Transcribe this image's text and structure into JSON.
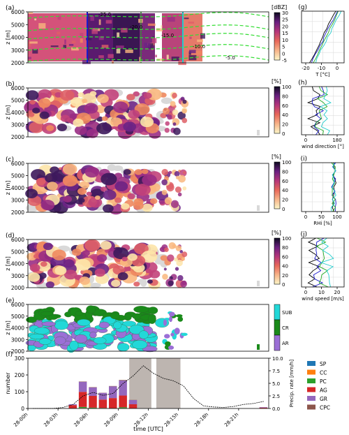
{
  "radar_panel": {
    "label": "(a)",
    "ylabel": "z [m]",
    "yticks": [
      "2000",
      "3000",
      "4000",
      "5000",
      "6000"
    ],
    "colorbar_unit": "[dBZ]",
    "colorbar_ticks": [
      "30",
      "25",
      "20",
      "15",
      "10",
      "5",
      "0",
      "-5"
    ],
    "temperature_contours": [
      "-25.0",
      "-20.0",
      "-15.0",
      "-10.0",
      "-5.0"
    ]
  },
  "fraction_panels": [
    {
      "label": "(b)",
      "ylabel": "z [m]",
      "colorbar_unit": "[%]"
    },
    {
      "label": "(c)",
      "ylabel": "z [m]",
      "colorbar_unit": "[%]"
    },
    {
      "label": "(d)",
      "ylabel": "z [m]",
      "colorbar_unit": "[%]"
    }
  ],
  "fraction_yticks": [
    "2000",
    "3000",
    "4000",
    "5000",
    "6000"
  ],
  "fraction_colorbar_ticks": [
    "100",
    "80",
    "60",
    "40",
    "20",
    "0"
  ],
  "class_panel": {
    "label": "(e)",
    "ylabel": "z [m]",
    "yticks": [
      "2000",
      "3000",
      "4000",
      "5000",
      "6000"
    ],
    "classes": [
      {
        "name": "SUB",
        "color": "#22d8d8"
      },
      {
        "name": "CR",
        "color": "#1a8a1a"
      },
      {
        "name": "AR",
        "color": "#9b6fd6"
      }
    ]
  },
  "histogram_panel": {
    "label": "(f)",
    "ylabel": "number",
    "ylabel_right": "Precip. rate [mm/h]",
    "xlabel": "time [UTC]",
    "yticks": [
      "0",
      "100",
      "200",
      "300"
    ],
    "yticks_right": [
      "0.0",
      "2.5",
      "5.0",
      "7.5",
      "10.0"
    ],
    "xticks": [
      "28-00h",
      "28-03h",
      "28-06h",
      "28-09h",
      "28-12h",
      "28-15h",
      "28-18h",
      "28-21h"
    ],
    "legend": [
      {
        "name": "SP",
        "color": "#1f77b4"
      },
      {
        "name": "CC",
        "color": "#ff7f0e"
      },
      {
        "name": "PC",
        "color": "#2ca02c"
      },
      {
        "name": "AG",
        "color": "#d62728"
      },
      {
        "name": "GR",
        "color": "#9467bd"
      },
      {
        "name": "CPC",
        "color": "#8c564b"
      }
    ]
  },
  "profile_panels": [
    {
      "label": "(g)",
      "xlabel": "T [°C]",
      "xticks": [
        "-20",
        "-10",
        "0"
      ]
    },
    {
      "label": "(h)",
      "xlabel": "wind direction [°]",
      "xticks": [
        "0",
        "180"
      ]
    },
    {
      "label": "(i)",
      "xlabel": "RHi [%]",
      "xticks": [
        "0",
        "50",
        "100"
      ]
    },
    {
      "label": "(j)",
      "xlabel": "wind speed [m/s]",
      "xticks": [
        "0",
        "10",
        "20"
      ]
    }
  ],
  "chart_data": {
    "type": "bar",
    "title": "",
    "x": [
      0,
      1,
      2,
      3,
      4,
      5,
      6,
      7,
      8,
      9,
      10,
      11,
      12,
      13,
      14,
      15,
      16,
      17,
      18,
      19,
      20,
      21,
      22,
      23
    ],
    "series": [
      {
        "name": "SP",
        "values": [
          0,
          0,
          0,
          0,
          0,
          1,
          0,
          0,
          0,
          1,
          0,
          0,
          0,
          0,
          0,
          0,
          0,
          0,
          0,
          0,
          0,
          0,
          0,
          0
        ]
      },
      {
        "name": "CC",
        "values": [
          0,
          0,
          0,
          0,
          0,
          2,
          1,
          0,
          0,
          1,
          0,
          0,
          0,
          0,
          0,
          0,
          0,
          0,
          0,
          0,
          0,
          0,
          0,
          0
        ]
      },
      {
        "name": "PC",
        "values": [
          0,
          0,
          0,
          0,
          0,
          6,
          4,
          3,
          2,
          5,
          0,
          0,
          0,
          0,
          0,
          0,
          0,
          0,
          0,
          0,
          0,
          0,
          0,
          1
        ]
      },
      {
        "name": "AG",
        "values": [
          0,
          0,
          0,
          0,
          20,
          90,
          70,
          50,
          60,
          70,
          25,
          0,
          0,
          0,
          0,
          0,
          0,
          0,
          0,
          0,
          0,
          0,
          0,
          4
        ]
      },
      {
        "name": "GR",
        "values": [
          0,
          0,
          0,
          0,
          5,
          60,
          50,
          40,
          70,
          90,
          25,
          0,
          0,
          0,
          0,
          0,
          0,
          0,
          0,
          0,
          0,
          0,
          0,
          3
        ]
      },
      {
        "name": "CPC",
        "values": [
          0,
          0,
          0,
          0,
          0,
          2,
          2,
          1,
          2,
          3,
          1,
          0,
          0,
          0,
          0,
          0,
          0,
          0,
          0,
          0,
          0,
          0,
          0,
          0
        ]
      }
    ],
    "precip_rate": [
      0,
      0,
      0,
      0.2,
      0.8,
      2.5,
      3.2,
      2.6,
      3.0,
      5.0,
      6.5,
      8.5,
      7.0,
      6.0,
      5.5,
      4.5,
      2.0,
      0.5,
      0.3,
      0.2,
      0.4,
      0.8,
      1.0,
      1.4
    ],
    "shaded_intervals": [
      [
        10.1,
        12.3
      ],
      [
        12.8,
        15.2
      ]
    ],
    "ylim": [
      0,
      300
    ],
    "ylim_right": [
      0,
      10
    ]
  }
}
